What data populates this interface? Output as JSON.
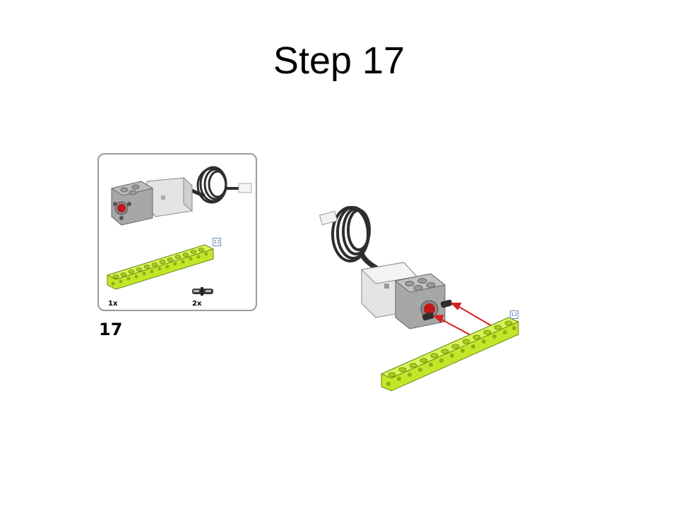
{
  "slide": {
    "title": "Step 17"
  },
  "parts_callout": {
    "beam_quantity": "1x",
    "pin_quantity": "2x",
    "beam_length": "12"
  },
  "assembly": {
    "beam_length": "12"
  },
  "step_number": "17",
  "colors": {
    "beam": "#c3e62a",
    "motor": "#e4e4e4",
    "motor_dark": "#9b9b9b",
    "cable": "#2e2e2e",
    "arrow": "#d62020",
    "badge": "#6b8fb5"
  }
}
